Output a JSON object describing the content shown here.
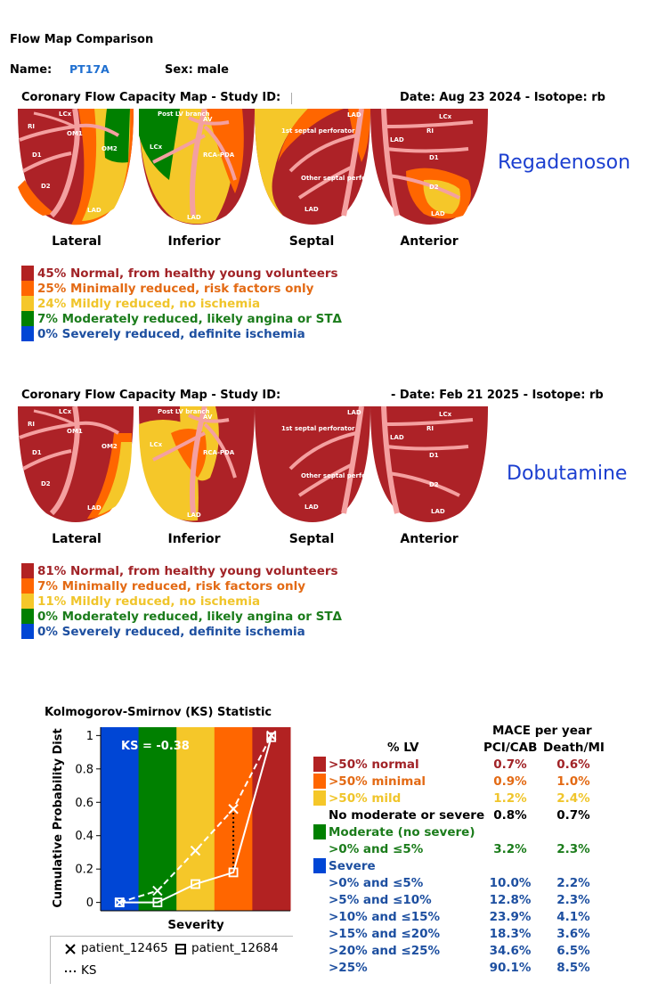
{
  "header": {
    "title": "Flow Map Comparison",
    "name_label": "Name:",
    "name_value": "PT17A",
    "sex_label": "Sex: male"
  },
  "colors": {
    "normal": "#b22222",
    "minimal": "#ff6600",
    "mild": "#f5c729",
    "moderate": "#008000",
    "severe": "#0046d5",
    "bg_red": "#ad2227",
    "vessel": "#f4a0a0",
    "blue_text": "#0b4fa0",
    "link_blue": "#1f6fd0",
    "stress_blue": "#1c3fd0",
    "text_normal": "#a12327",
    "text_minimal": "#e36a14",
    "text_mild": "#f0c52b",
    "text_moderate": "#1b7c1b",
    "text_severe": "#1d4fa0"
  },
  "study1": {
    "title_left": "Coronary Flow Capacity Map - Study ID:",
    "title_right": "Date: Aug 23 2024 - Isotope: rb",
    "stress_agent": "Regadenoson",
    "views": [
      "Lateral",
      "Inferior",
      "Septal",
      "Anterior"
    ],
    "vessel_labels": {
      "lateral": [
        "LCx",
        "RI",
        "OM1",
        "OM2",
        "D1",
        "D2",
        "LAD"
      ],
      "inferior": [
        "Post LV branch",
        "AV",
        "LCx",
        "RCA-PDA",
        "LAD"
      ],
      "septal": [
        "LAD",
        "1st septal perforator",
        "Other septal perforators",
        "LAD"
      ],
      "anterior": [
        "LCx",
        "RI",
        "LAD",
        "D1",
        "D2",
        "LAD"
      ]
    },
    "legend": [
      {
        "key": "normal",
        "text": "45% Normal, from healthy young volunteers"
      },
      {
        "key": "minimal",
        "text": "25% Minimally reduced, risk factors only"
      },
      {
        "key": "mild",
        "text": "24% Mildly reduced, no ischemia"
      },
      {
        "key": "moderate",
        "text": "7% Moderately reduced, likely angina or STΔ"
      },
      {
        "key": "severe",
        "text": "0% Severely reduced, definite ischemia"
      }
    ]
  },
  "study2": {
    "title_left": "Coronary Flow Capacity Map - Study ID:",
    "title_right": "- Date: Feb 21 2025 - Isotope: rb",
    "stress_agent": "Dobutamine",
    "views": [
      "Lateral",
      "Inferior",
      "Septal",
      "Anterior"
    ],
    "vessel_labels": {
      "lateral": [
        "LCx",
        "RI",
        "OM1",
        "OM2",
        "D1",
        "D2",
        "LAD"
      ],
      "inferior": [
        "Post LV branch",
        "AV",
        "LCx",
        "RCA-PDA",
        "LAD"
      ],
      "septal": [
        "LAD",
        "1st septal perforator",
        "Other septal perforators",
        "LAD"
      ],
      "anterior": [
        "LCx",
        "RI",
        "LAD",
        "D1",
        "D2",
        "LAD"
      ]
    },
    "legend": [
      {
        "key": "normal",
        "text": "81% Normal, from healthy young volunteers"
      },
      {
        "key": "minimal",
        "text": "7% Minimally reduced, risk factors only"
      },
      {
        "key": "mild",
        "text": "11% Mildly reduced, no ischemia"
      },
      {
        "key": "moderate",
        "text": "0% Moderately reduced, likely angina or STΔ"
      },
      {
        "key": "severe",
        "text": "0% Severely reduced, definite ischemia"
      }
    ]
  },
  "chart_data": {
    "type": "line",
    "title": "Kolmogorov-Smirnov (KS) Statistic",
    "xlabel": "Severity",
    "ylabel": "Cumulative Probability Dist",
    "annotation": "KS = -0.38",
    "x": [
      0,
      1,
      2,
      3,
      4
    ],
    "ylim": [
      -0.05,
      1.05
    ],
    "yticks": [
      0,
      0.2,
      0.4,
      0.6,
      0.8,
      1
    ],
    "ytick_labels": [
      "0",
      "0.2",
      "0.4",
      "0.6",
      "0.8",
      "1"
    ],
    "band_colors": [
      "#0046d5",
      "#008000",
      "#f5c729",
      "#ff6600",
      "#b22222"
    ],
    "series": [
      {
        "name": "patient_12465",
        "marker": "x",
        "style": "dashed",
        "values": [
          0.0,
          0.07,
          0.31,
          0.56,
          1.0
        ]
      },
      {
        "name": "patient_12684",
        "marker": "square",
        "style": "solid",
        "values": [
          0.0,
          0.0,
          0.11,
          0.18,
          0.99
        ]
      }
    ],
    "ks_line": {
      "name": "KS",
      "x": 3,
      "y_from": 0.18,
      "y_to": 0.56
    },
    "legend": [
      "patient_12465",
      "patient_12684",
      "KS"
    ]
  },
  "mace": {
    "title": "MACE per year",
    "col_lv": "% LV",
    "col1": "PCI/CAB",
    "col2": "Death/MI",
    "rows": [
      {
        "key": "normal",
        "swatch": true,
        "label": ">50% normal",
        "v1": "0.7%",
        "v2": "0.6%",
        "color": "#a12327"
      },
      {
        "key": "minimal",
        "swatch": true,
        "label": ">50% minimal",
        "v1": "0.9%",
        "v2": "1.0%",
        "color": "#e36a14"
      },
      {
        "key": "mild",
        "swatch": true,
        "label": ">50% mild",
        "v1": "1.2%",
        "v2": "2.4%",
        "color": "#f0c52b"
      },
      {
        "key": "none",
        "swatch": false,
        "label": "No moderate or severe",
        "v1": "0.8%",
        "v2": "0.7%",
        "color": "#000000"
      },
      {
        "key": "moderate",
        "swatch": true,
        "label": "Moderate (no severe)",
        "v1": "",
        "v2": "",
        "color": "#1b7c1b"
      },
      {
        "key": "none",
        "swatch": false,
        "label": ">0% and ≤5%",
        "v1": "3.2%",
        "v2": "2.3%",
        "color": "#1b7c1b"
      },
      {
        "key": "severe",
        "swatch": true,
        "label": "Severe",
        "v1": "",
        "v2": "",
        "color": "#1d4fa0"
      },
      {
        "key": "none",
        "swatch": false,
        "label": ">0% and ≤5%",
        "v1": "10.0%",
        "v2": "2.2%",
        "color": "#1d4fa0"
      },
      {
        "key": "none",
        "swatch": false,
        "label": ">5% and ≤10%",
        "v1": "12.8%",
        "v2": "2.3%",
        "color": "#1d4fa0"
      },
      {
        "key": "none",
        "swatch": false,
        "label": ">10% and ≤15%",
        "v1": "23.9%",
        "v2": "4.1%",
        "color": "#1d4fa0"
      },
      {
        "key": "none",
        "swatch": false,
        "label": ">15% and ≤20%",
        "v1": "18.3%",
        "v2": "3.6%",
        "color": "#1d4fa0"
      },
      {
        "key": "none",
        "swatch": false,
        "label": ">20% and ≤25%",
        "v1": "34.6%",
        "v2": "6.5%",
        "color": "#1d4fa0"
      },
      {
        "key": "none",
        "swatch": false,
        "label": ">25%",
        "v1": "90.1%",
        "v2": "8.5%",
        "color": "#1d4fa0"
      }
    ]
  }
}
